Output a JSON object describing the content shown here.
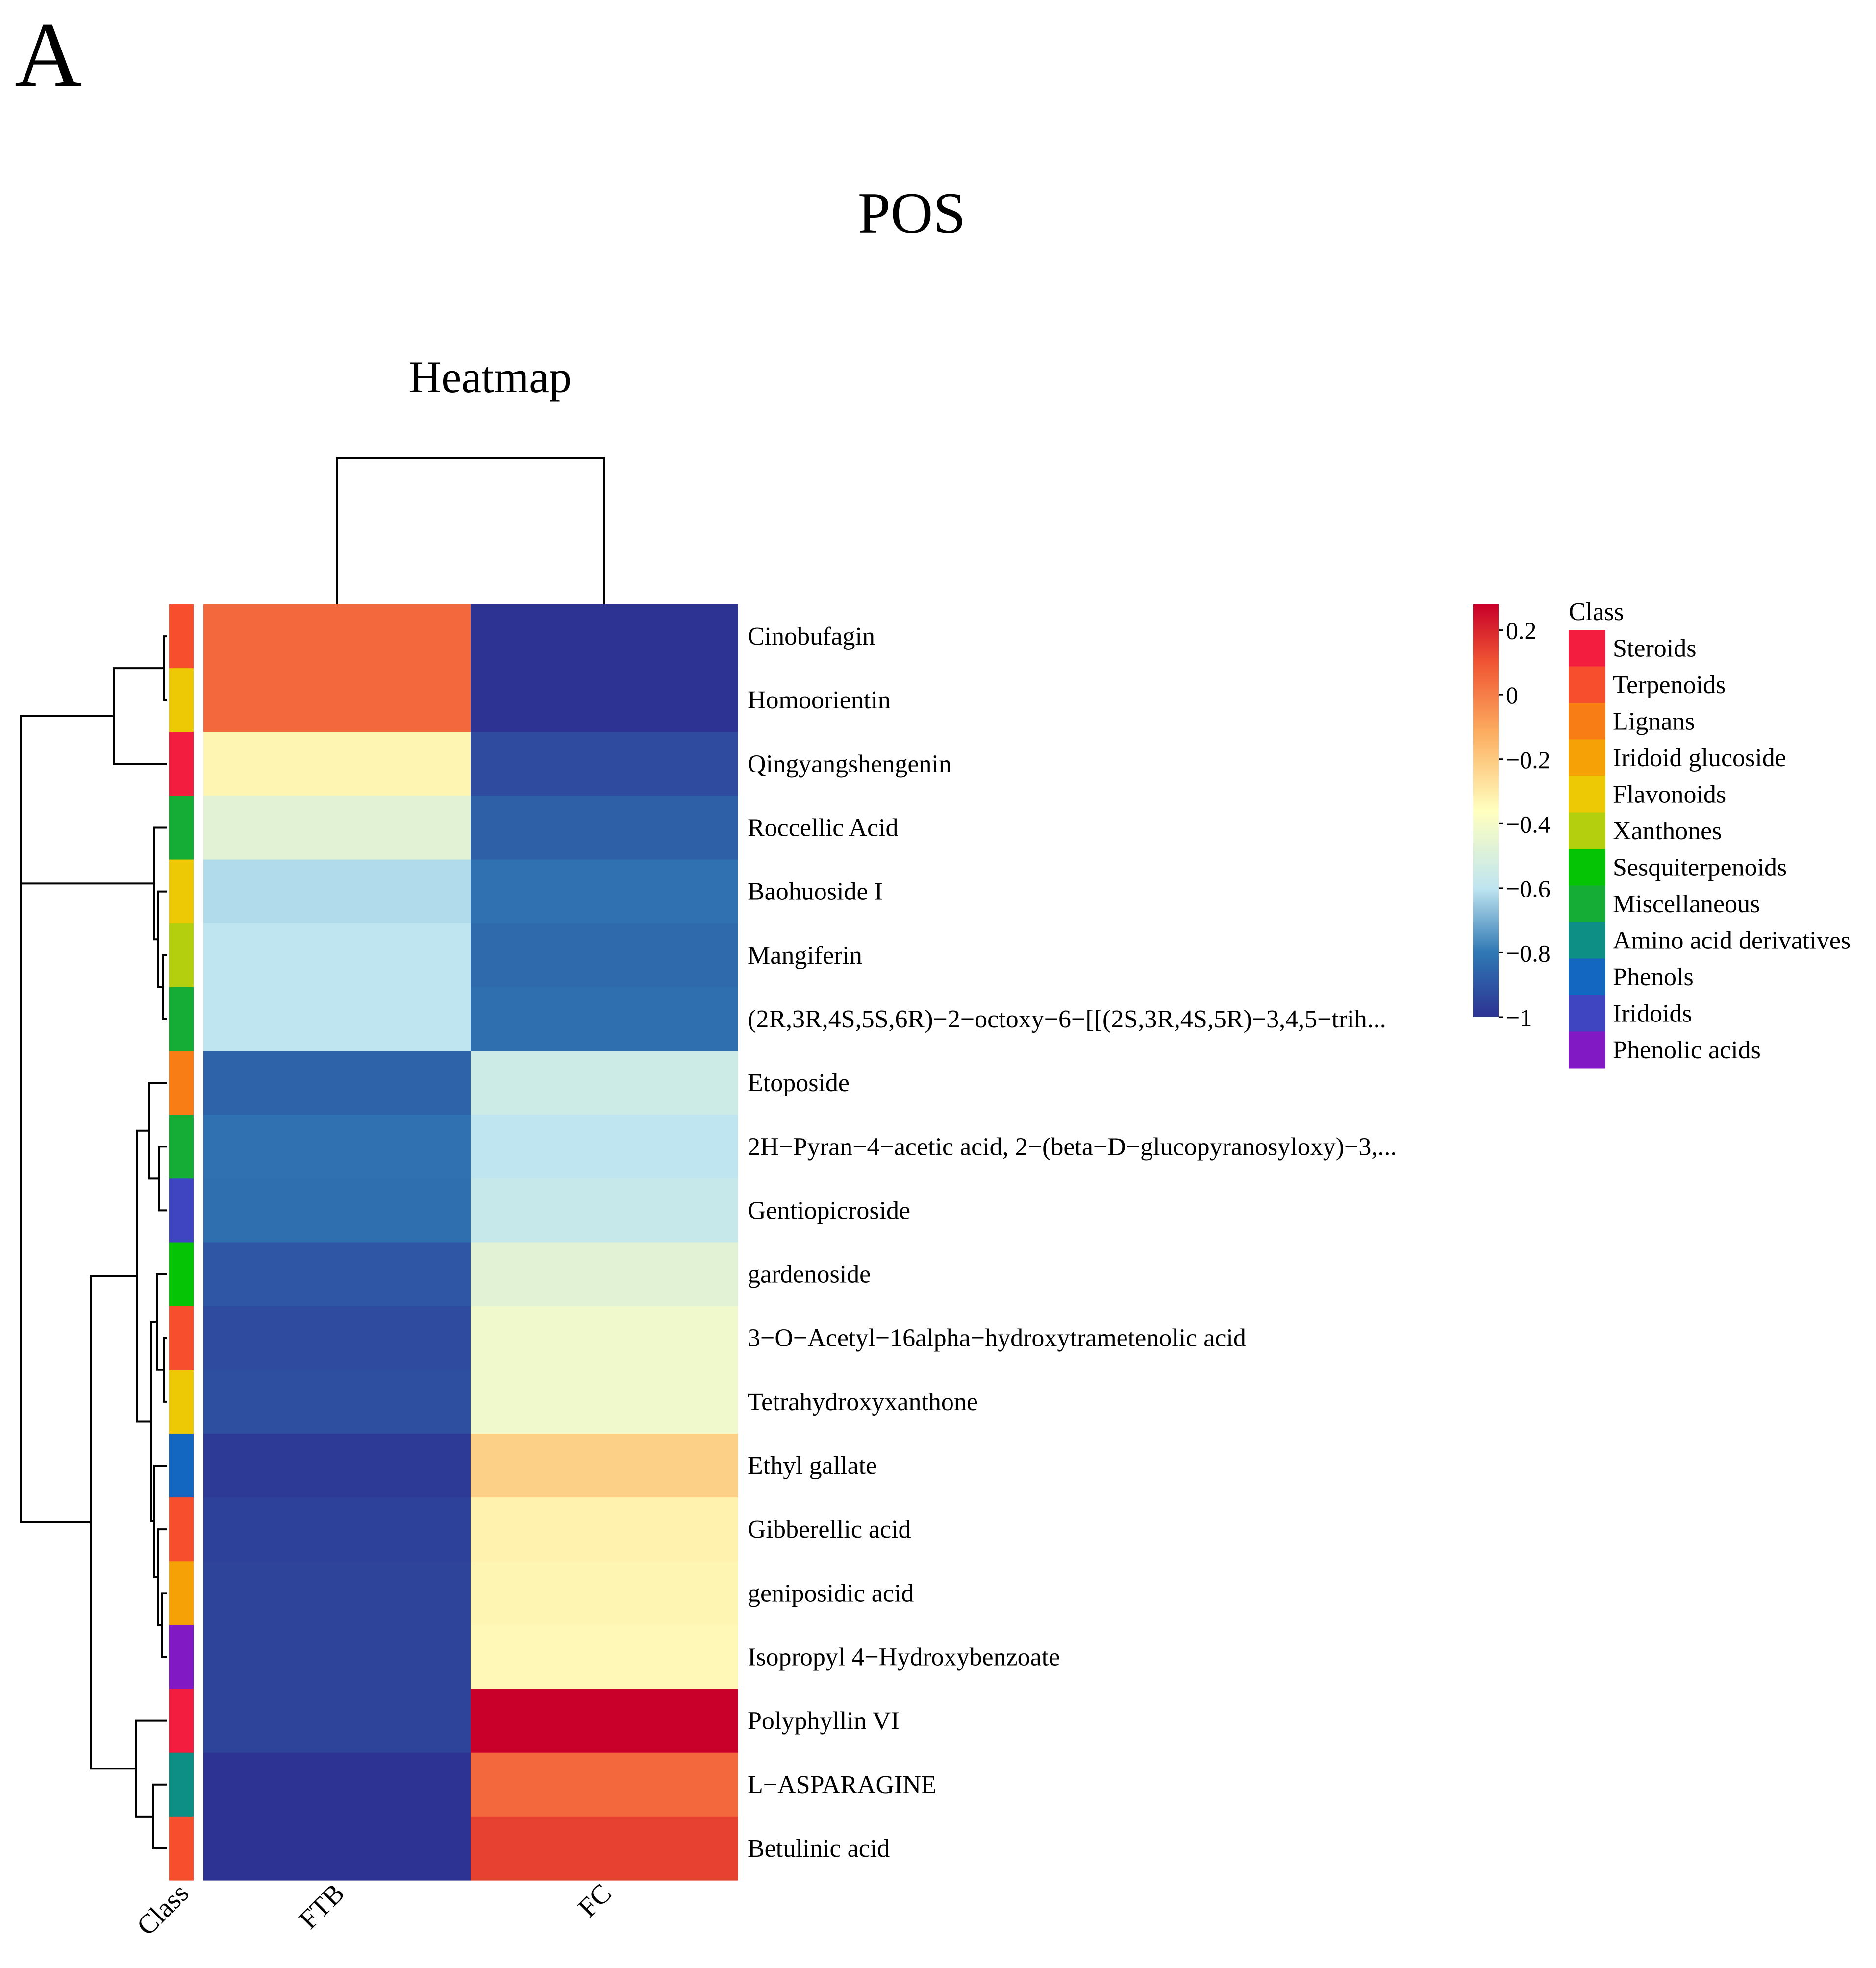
{
  "panel_label": "A",
  "figure_title": "POS",
  "chart_data": {
    "type": "heatmap",
    "title": "Heatmap",
    "columns": [
      "FTB",
      "FC"
    ],
    "class_column_label": "Class",
    "rows": [
      {
        "name": "Cinobufagin",
        "class": "Terpenoids",
        "values": [
          0.05,
          -1.0
        ]
      },
      {
        "name": "Homoorientin",
        "class": "Flavonoids",
        "values": [
          0.05,
          -1.0
        ]
      },
      {
        "name": "Qingyangshengenin",
        "class": "Steroids",
        "values": [
          -0.33,
          -0.93
        ]
      },
      {
        "name": "Roccellic Acid",
        "class": "Miscellaneous",
        "values": [
          -0.47,
          -0.87
        ]
      },
      {
        "name": "Baohuoside I",
        "class": "Flavonoids",
        "values": [
          -0.62,
          -0.82
        ]
      },
      {
        "name": "Mangiferin",
        "class": "Xanthones",
        "values": [
          -0.6,
          -0.84
        ]
      },
      {
        "name": "(2R,3R,4S,5S,6R)−2−octoxy−6−[[(2S,3R,4S,5R)−3,4,5−trih...",
        "class": "Miscellaneous",
        "values": [
          -0.6,
          -0.83
        ]
      },
      {
        "name": "Etoposide",
        "class": "Lignans",
        "values": [
          -0.86,
          -0.55
        ]
      },
      {
        "name": "2H−Pyran−4−acetic acid, 2−(beta−D−glucopyranosyloxy)−3,...",
        "class": "Miscellaneous",
        "values": [
          -0.82,
          -0.6
        ]
      },
      {
        "name": "Gentiopicroside",
        "class": "Iridoids",
        "values": [
          -0.83,
          -0.57
        ]
      },
      {
        "name": "gardenoside",
        "class": "Sesquiterpenoids",
        "values": [
          -0.9,
          -0.47
        ]
      },
      {
        "name": "3−O−Acetyl−16alpha−hydroxytrametenolic acid",
        "class": "Terpenoids",
        "values": [
          -0.93,
          -0.42
        ]
      },
      {
        "name": "Tetrahydroxyxanthone",
        "class": "Flavonoids",
        "values": [
          -0.92,
          -0.42
        ]
      },
      {
        "name": "Ethyl gallate",
        "class": "Phenols",
        "values": [
          -0.98,
          -0.22
        ]
      },
      {
        "name": "Gibberellic acid",
        "class": "Terpenoids",
        "values": [
          -0.96,
          -0.32
        ]
      },
      {
        "name": "geniposidic acid",
        "class": "Iridoid glucoside",
        "values": [
          -0.95,
          -0.33
        ]
      },
      {
        "name": "Isopropyl 4−Hydroxybenzoate",
        "class": "Phenolic acids",
        "values": [
          -0.95,
          -0.34
        ]
      },
      {
        "name": "Polyphyllin VI",
        "class": "Steroids",
        "values": [
          -0.95,
          0.28
        ]
      },
      {
        "name": "L−ASPARAGINE",
        "class": "Amino acid derivatives",
        "values": [
          -1.0,
          0.05
        ]
      },
      {
        "name": "Betulinic acid",
        "class": "Terpenoids",
        "values": [
          -1.0,
          0.14
        ]
      }
    ],
    "color_scale": {
      "min": -1,
      "max": 0.28,
      "ticks": [
        0.2,
        0,
        -0.2,
        -0.4,
        -0.6,
        -0.8,
        -1
      ],
      "tick_labels": [
        "0.2",
        "0",
        "−0.2",
        "−0.4",
        "−0.6",
        "−0.8",
        "−1"
      ],
      "stops": [
        {
          "value": -1.0,
          "color": "#2d3393"
        },
        {
          "value": -0.8,
          "color": "#2f78b4"
        },
        {
          "value": -0.6,
          "color": "#bfe5f0"
        },
        {
          "value": -0.36,
          "color": "#ffffbf"
        },
        {
          "value": -0.12,
          "color": "#fcae61"
        },
        {
          "value": 0.1,
          "color": "#f05533"
        },
        {
          "value": 0.28,
          "color": "#c8002a"
        }
      ]
    },
    "class_legend": {
      "title": "Class",
      "items": [
        {
          "name": "Steroids",
          "color": "#f21d3f"
        },
        {
          "name": "Terpenoids",
          "color": "#f74e2d"
        },
        {
          "name": "Lignans",
          "color": "#f87d14"
        },
        {
          "name": "Iridoid glucoside",
          "color": "#f6a206"
        },
        {
          "name": "Flavonoids",
          "color": "#edc805"
        },
        {
          "name": "Xanthones",
          "color": "#b3cf0e"
        },
        {
          "name": "Sesquiterpenoids",
          "color": "#05c405"
        },
        {
          "name": "Miscellaneous",
          "color": "#16ad36"
        },
        {
          "name": "Amino acid derivatives",
          "color": "#0e8f85"
        },
        {
          "name": "Phenols",
          "color": "#1467c0"
        },
        {
          "name": "Iridoids",
          "color": "#3f45c0"
        },
        {
          "name": "Phenolic acids",
          "color": "#8119c4"
        }
      ]
    }
  }
}
